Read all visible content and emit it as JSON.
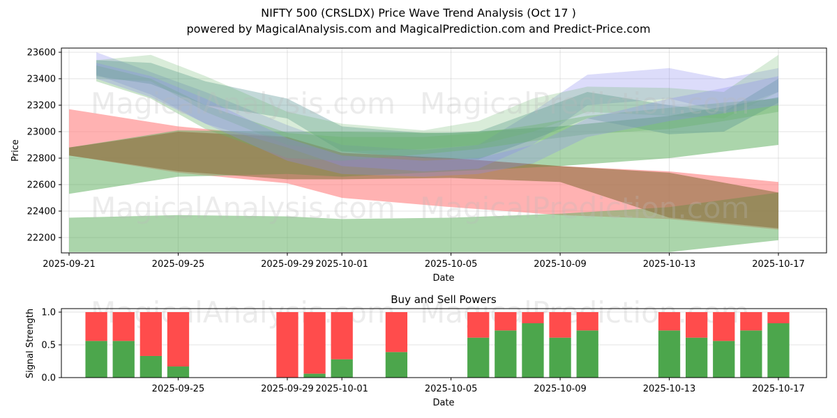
{
  "title": "NIFTY 500 (CRSLDX) Price Wave Trend Analysis (Oct 17 )",
  "subtitle": "powered by MagicalAnalysis.com and MagicalPrediction.com and Predict-Price.com",
  "watermarks": [
    "MagicalAnalysis.com",
    "MagicalPrediction.com"
  ],
  "colors": {
    "buy": "#4ca64c",
    "sell": "#ff4c4c",
    "band_red": "#ff7f7f",
    "band_green": "#66b266",
    "band_blue": "#8c8cf0",
    "band_teal": "#4f8f8f",
    "band_brown": "#8c7040"
  },
  "chart_data": [
    {
      "type": "area",
      "title": "",
      "xlabel": "Date",
      "ylabel": "Price",
      "x_range": [
        "2025-09-20T17:00",
        "2025-10-18T18:00"
      ],
      "ylim": [
        22090,
        23640
      ],
      "grid": true,
      "x_ticks": [
        "2025-09-21",
        "2025-09-25",
        "2025-09-29",
        "2025-10-01",
        "2025-10-05",
        "2025-10-09",
        "2025-10-13",
        "2025-10-17"
      ],
      "y_ticks": [
        22200,
        22400,
        22600,
        22800,
        23000,
        23200,
        23400,
        23600
      ],
      "series": [
        {
          "name": "red-band",
          "color": "band_red",
          "opacity": 0.6,
          "x": [
            "2025-09-21",
            "2025-09-25",
            "2025-09-29",
            "2025-10-01",
            "2025-10-05",
            "2025-10-09",
            "2025-10-13",
            "2025-10-17"
          ],
          "upper": [
            23170,
            23040,
            22960,
            22840,
            22800,
            22740,
            22700,
            22620
          ],
          "lower": [
            22820,
            22690,
            22610,
            22500,
            22430,
            22370,
            22340,
            22260
          ]
        },
        {
          "name": "green-band-upper-fan",
          "color": "band_green",
          "opacity": 0.55,
          "x": [
            "2025-09-21",
            "2025-09-25",
            "2025-09-29",
            "2025-10-01",
            "2025-10-05",
            "2025-10-09",
            "2025-10-13",
            "2025-10-17"
          ],
          "upper": [
            22880,
            23010,
            23000,
            23000,
            22990,
            23040,
            23120,
            23260
          ],
          "lower": [
            22530,
            22660,
            22680,
            22660,
            22700,
            22740,
            22800,
            22900
          ]
        },
        {
          "name": "green-band-bottom",
          "color": "band_green",
          "opacity": 0.55,
          "x": [
            "2025-09-21",
            "2025-09-25",
            "2025-09-29",
            "2025-10-01",
            "2025-10-05",
            "2025-10-09",
            "2025-10-13",
            "2025-10-17"
          ],
          "upper": [
            22350,
            22370,
            22360,
            22340,
            22350,
            22380,
            22430,
            22540
          ],
          "lower": [
            22090,
            22090,
            22090,
            22090,
            22090,
            22090,
            22090,
            22180
          ]
        },
        {
          "name": "brown-band-overlap",
          "color": "band_brown",
          "opacity": 0.6,
          "x": [
            "2025-09-21",
            "2025-09-25",
            "2025-09-29",
            "2025-10-01",
            "2025-10-05",
            "2025-10-09",
            "2025-10-13",
            "2025-10-17"
          ],
          "upper": [
            22880,
            23000,
            22960,
            22840,
            22800,
            22740,
            22690,
            22540
          ],
          "lower": [
            22820,
            22700,
            22640,
            22640,
            22650,
            22620,
            22350,
            22270
          ]
        },
        {
          "name": "wave-blue-1",
          "color": "band_blue",
          "opacity": 0.3,
          "x": [
            "2025-09-22",
            "2025-09-24",
            "2025-09-26",
            "2025-09-29",
            "2025-10-01",
            "2025-10-04",
            "2025-10-06",
            "2025-10-08",
            "2025-10-10",
            "2025-10-13",
            "2025-10-15",
            "2025-10-17"
          ],
          "upper": [
            23600,
            23450,
            23300,
            23050,
            22900,
            22860,
            22900,
            23150,
            23430,
            23480,
            23400,
            23480
          ],
          "lower": [
            23430,
            23280,
            23060,
            22880,
            22740,
            22700,
            22720,
            22900,
            23200,
            23250,
            23150,
            23300
          ]
        },
        {
          "name": "wave-teal-1",
          "color": "band_teal",
          "opacity": 0.35,
          "x": [
            "2025-09-22",
            "2025-09-24",
            "2025-09-26",
            "2025-09-29",
            "2025-10-01",
            "2025-10-04",
            "2025-10-06",
            "2025-10-08",
            "2025-10-10",
            "2025-10-13",
            "2025-10-15",
            "2025-10-17"
          ],
          "upper": [
            23540,
            23520,
            23380,
            23250,
            23040,
            22990,
            23000,
            23150,
            23300,
            23200,
            23150,
            23400
          ],
          "lower": [
            23420,
            23360,
            23200,
            23100,
            22850,
            22800,
            22790,
            22940,
            23100,
            22980,
            23000,
            23220
          ]
        },
        {
          "name": "wave-green-1",
          "color": "band_green",
          "opacity": 0.25,
          "x": [
            "2025-09-22",
            "2025-09-24",
            "2025-09-26",
            "2025-09-29",
            "2025-10-01",
            "2025-10-04",
            "2025-10-06",
            "2025-10-08",
            "2025-10-10",
            "2025-10-13",
            "2025-10-15",
            "2025-10-17"
          ],
          "upper": [
            23540,
            23580,
            23420,
            23150,
            23060,
            23010,
            23080,
            23250,
            23340,
            23330,
            23300,
            23580
          ],
          "lower": [
            23400,
            23380,
            23150,
            22900,
            22850,
            22870,
            22900,
            23000,
            23150,
            23120,
            23100,
            23300
          ]
        },
        {
          "name": "wave-green-2",
          "color": "band_green",
          "opacity": 0.35,
          "x": [
            "2025-09-22",
            "2025-09-24",
            "2025-09-26",
            "2025-09-29",
            "2025-10-01",
            "2025-10-04",
            "2025-10-06",
            "2025-10-08",
            "2025-10-10",
            "2025-10-13",
            "2025-10-15",
            "2025-10-17"
          ],
          "upper": [
            23500,
            23400,
            23200,
            22990,
            22960,
            22960,
            22990,
            23050,
            23120,
            23180,
            23220,
            23250
          ],
          "lower": [
            23380,
            23250,
            23020,
            22800,
            22780,
            22830,
            22870,
            22930,
            22980,
            23020,
            23080,
            23150
          ]
        },
        {
          "name": "wave-blue-2",
          "color": "band_blue",
          "opacity": 0.3,
          "x": [
            "2025-09-22",
            "2025-09-24",
            "2025-09-26",
            "2025-09-29",
            "2025-10-01",
            "2025-10-04",
            "2025-10-06",
            "2025-10-08",
            "2025-10-10",
            "2025-10-13",
            "2025-10-15",
            "2025-10-17"
          ],
          "upper": [
            23520,
            23420,
            23250,
            22950,
            22820,
            22780,
            22800,
            22900,
            23100,
            23250,
            23330,
            23420
          ],
          "lower": [
            23400,
            23260,
            23060,
            22780,
            22680,
            22660,
            22680,
            22760,
            22960,
            23080,
            23140,
            23200
          ]
        }
      ]
    },
    {
      "type": "bar",
      "title": "Buy and Sell Powers",
      "xlabel": "Date",
      "ylabel": "Signal Strength",
      "ylim": [
        0,
        1.05
      ],
      "grid": true,
      "x_ticks": [
        "2025-09-25",
        "2025-09-29",
        "2025-10-01",
        "2025-10-05",
        "2025-10-09",
        "2025-10-13",
        "2025-10-17"
      ],
      "y_ticks": [
        "0.0",
        "0.5",
        "1.0"
      ],
      "categories": [
        "2025-09-22",
        "2025-09-23",
        "2025-09-24",
        "2025-09-25",
        "2025-09-29",
        "2025-09-30",
        "2025-10-01",
        "2025-10-03",
        "2025-10-06",
        "2025-10-07",
        "2025-10-08",
        "2025-10-09",
        "2025-10-10",
        "2025-10-13",
        "2025-10-14",
        "2025-10-15",
        "2025-10-16",
        "2025-10-17"
      ],
      "series": [
        {
          "name": "Buy",
          "color": "buy",
          "values": [
            0.56,
            0.56,
            0.33,
            0.17,
            0.0,
            0.06,
            0.28,
            0.39,
            0.61,
            0.72,
            0.83,
            0.61,
            0.72,
            0.72,
            0.61,
            0.56,
            0.72,
            0.83
          ]
        },
        {
          "name": "Sell",
          "color": "sell",
          "values": [
            0.44,
            0.44,
            0.67,
            0.83,
            1.0,
            0.94,
            0.72,
            0.61,
            0.39,
            0.28,
            0.17,
            0.39,
            0.28,
            0.28,
            0.39,
            0.44,
            0.28,
            0.17
          ]
        }
      ]
    }
  ]
}
